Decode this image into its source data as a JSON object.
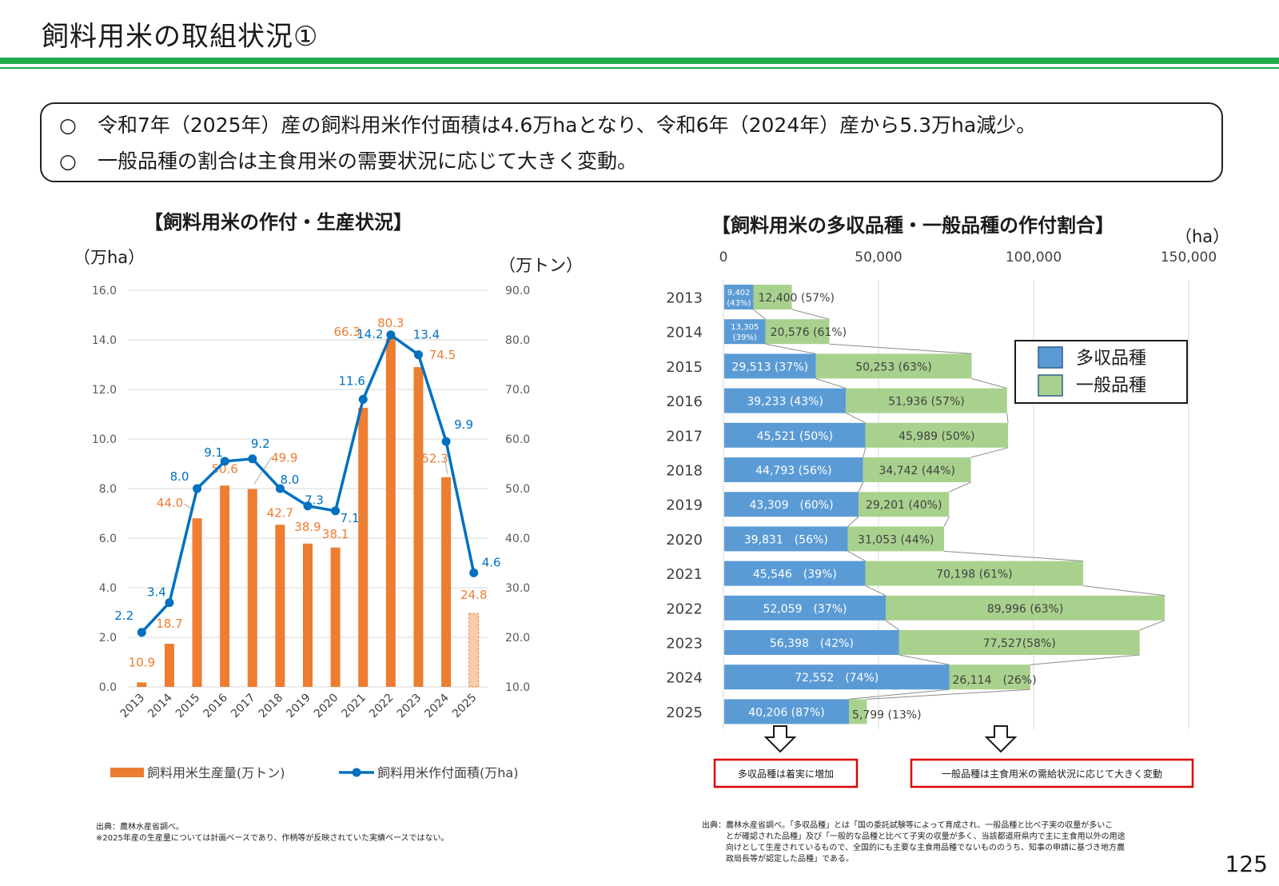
{
  "header": {
    "title": "飼料用米の取組状況①",
    "summary": [
      {
        "mark": "○",
        "text": "令和7年（2025年）産の飼料用米作付面積は4.6万haとなり、令和6年（2024年）産から5.3万ha減少。"
      },
      {
        "mark": "○",
        "text": "一般品種の割合は主食用米の需要状況に応じて大きく変動。"
      }
    ]
  },
  "colors": {
    "green_rule": "#1eac4b",
    "production_bar": "#ed7d31",
    "area_line": "#0070c0",
    "multi_yield": "#5b9bd5",
    "general_variety": "#a9d18e",
    "callout_border": "#e00000"
  },
  "left": {
    "title": "【飼料用米の作付・生産状況】",
    "left_unit": "（万ha）",
    "right_unit": "（万トン）",
    "legend_bar": "飼料用米生産量(万トン)",
    "legend_line": "飼料用米作付面積(万ha)",
    "source": "出典：農林水産省調べ。",
    "note": "※2025年産の生産量については計画ベースであり、作柄等が反映されていた実績ベースではない。"
  },
  "right": {
    "title": "【飼料用米の多収品種・一般品種の作付割合】",
    "unit": "（ha）",
    "legend_multi": "多収品種",
    "legend_general": "一般品種",
    "callout_left": "多収品種は着実に増加",
    "callout_right": "一般品種は主食用米の需給状況に応じて大きく変動",
    "source": [
      "出典：農林水産省調べ。「多収品種」とは「国の委託試験等によって育成され、一般品種と比べ子実の収量が多いこ",
      "とが確認された品種」及び「一般的な品種と比べて子実の収量が多く、当該都道府県内で主に主食用以外の用途",
      "向けとして生産されているもので、全国的にも主要な主食用品種でないもののうち、知事の申請に基づき地方農",
      "政局長等が認定した品種」である。"
    ]
  },
  "page_number": "125",
  "chart_data": [
    {
      "type": "bar",
      "title": "【飼料用米の作付・生産状況】",
      "categories": [
        "2013",
        "2014",
        "2015",
        "2016",
        "2017",
        "2018",
        "2019",
        "2020",
        "2021",
        "2022",
        "2023",
        "2024",
        "2025"
      ],
      "y_left": {
        "label": "（万ha）",
        "range": [
          0,
          16
        ],
        "ticks": [
          "0.0",
          "2.0",
          "4.0",
          "6.0",
          "8.0",
          "10.0",
          "12.0",
          "14.0",
          "16.0"
        ]
      },
      "y_right": {
        "label": "（万トン）",
        "range": [
          10,
          90
        ],
        "ticks": [
          "10.0",
          "20.0",
          "30.0",
          "40.0",
          "50.0",
          "60.0",
          "70.0",
          "80.0",
          "90.0"
        ]
      },
      "series": [
        {
          "name": "飼料用米生産量(万トン)",
          "type": "bar",
          "axis": "right",
          "values": [
            10.9,
            18.7,
            44.0,
            50.6,
            49.9,
            42.7,
            38.9,
            38.1,
            66.3,
            80.3,
            74.5,
            52.3,
            24.8
          ],
          "labels": [
            "10.9",
            "18.7",
            "44.0",
            "50.6",
            "49.9",
            "42.7",
            "38.9",
            "38.1",
            "66.3",
            "80.3",
            "74.5",
            "52.3",
            "24.8"
          ],
          "planned_last": true
        },
        {
          "name": "飼料用米作付面積(万ha)",
          "type": "line",
          "axis": "left",
          "values": [
            2.2,
            3.4,
            8.0,
            9.1,
            9.2,
            8.0,
            7.3,
            7.1,
            11.6,
            14.2,
            13.4,
            9.9,
            4.6
          ],
          "labels": [
            "2.2",
            "3.4",
            "8.0",
            "9.1",
            "9.2",
            "8.0",
            "7.3",
            "7.1",
            "11.6",
            "14.2",
            "13.4",
            "9.9",
            "4.6"
          ]
        }
      ],
      "legend": "bottom"
    },
    {
      "type": "bar",
      "orientation": "horizontal",
      "stacked": true,
      "title": "【飼料用米の多収品種・一般品種の作付割合】",
      "categories": [
        "2013",
        "2014",
        "2015",
        "2016",
        "2017",
        "2018",
        "2019",
        "2020",
        "2021",
        "2022",
        "2023",
        "2024",
        "2025"
      ],
      "x_axis": {
        "range": [
          0,
          150000
        ],
        "ticks": [
          "0",
          "50,000",
          "100,000",
          "150,000"
        ],
        "position": "top"
      },
      "series": [
        {
          "name": "多収品種",
          "values": [
            9402,
            13305,
            29513,
            39233,
            45521,
            44793,
            43309,
            39831,
            45546,
            52059,
            56398,
            72552,
            40206
          ],
          "labels": [
            "9,402 (43%)",
            "13,305 (39%)",
            "29,513 (37%)",
            "39,233 (43%)",
            "45,521 (50%)",
            "44,793 (56%)",
            "43,309　(60%)",
            "39,831　(56%)",
            "45,546　(39%)",
            "52,059　(37%)",
            "56,398　(42%)",
            "72,552　(74%)",
            "40,206 (87%)"
          ]
        },
        {
          "name": "一般品種",
          "values": [
            12400,
            20576,
            50253,
            51936,
            45989,
            34742,
            29201,
            31053,
            70198,
            89996,
            77527,
            26114,
            5799
          ],
          "labels": [
            "12,400 (57%)",
            "20,576 (61%)",
            "50,253 (63%)",
            "51,936 (57%)",
            "45,989 (50%)",
            "34,742 (44%)",
            "29,201 (40%)",
            "31,053 (44%)",
            "70,198 (61%)",
            "89,996 (63%)",
            "77,527(58%)",
            "26,114　(26%)",
            "5,799 (13%)"
          ]
        }
      ],
      "legend": "top-right"
    }
  ]
}
